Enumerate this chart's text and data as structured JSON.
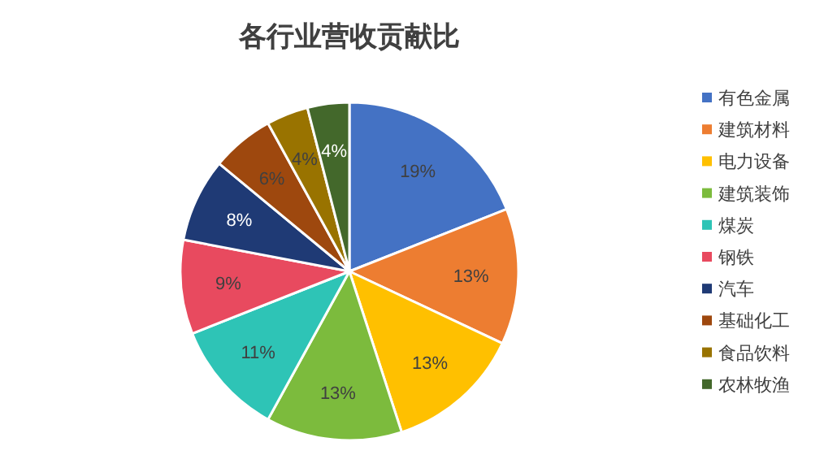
{
  "chart_data": {
    "type": "pie",
    "title": "各行业营收贡献比",
    "categories": [
      "有色金属",
      "建筑材料",
      "电力设备",
      "建筑装饰",
      "煤炭",
      "钢铁",
      "汽车",
      "基础化工",
      "食品饮料",
      "农林牧渔"
    ],
    "values": [
      19,
      13,
      13,
      13,
      11,
      9,
      8,
      6,
      4,
      4
    ],
    "value_labels": [
      "19%",
      "13%",
      "13%",
      "13%",
      "11%",
      "9%",
      "8%",
      "6%",
      "4%",
      "4%"
    ],
    "colors": [
      "#4472c4",
      "#ed7d31",
      "#ffc000",
      "#7cbb3d",
      "#2ec4b6",
      "#e84a5f",
      "#1f3a75",
      "#9e480e",
      "#997300",
      "#43682b"
    ],
    "legend": "right"
  }
}
